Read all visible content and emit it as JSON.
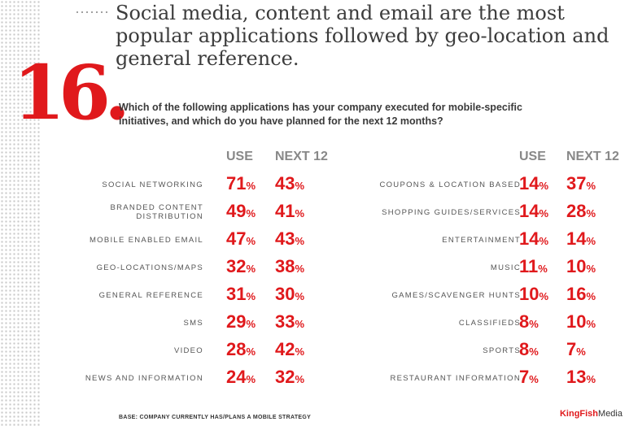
{
  "headline": "Social media, content and email are the most popular applications followed by geo-location and general reference.",
  "figure_number": "16",
  "question": "Which of the following applications has your company executed for mobile-specific initiatives, and which do you have planned for the next 12 months?",
  "columns": {
    "use": "USE",
    "next": "NEXT 12"
  },
  "percent_sign": "%",
  "left_rows": [
    {
      "label": "SOCIAL NETWORKING",
      "use": "71",
      "next": "43"
    },
    {
      "label": "BRANDED CONTENT DISTRIBUTION",
      "use": "49",
      "next": "41"
    },
    {
      "label": "MOBILE ENABLED EMAIL",
      "use": "47",
      "next": "43"
    },
    {
      "label": "GEO-LOCATIONS/MAPS",
      "use": "32",
      "next": "38"
    },
    {
      "label": "GENERAL REFERENCE",
      "use": "31",
      "next": "30"
    },
    {
      "label": "SMS",
      "use": "29",
      "next": "33"
    },
    {
      "label": "VIDEO",
      "use": "28",
      "next": "42"
    },
    {
      "label": "NEWS AND INFORMATION",
      "use": "24",
      "next": "32"
    }
  ],
  "right_rows": [
    {
      "label": "COUPONS & LOCATION BASED",
      "use": "14",
      "next": "37"
    },
    {
      "label": "SHOPPING GUIDES/SERVICES",
      "use": "14",
      "next": "28"
    },
    {
      "label": "ENTERTAINMENT",
      "use": "14",
      "next": "14"
    },
    {
      "label": "MUSIC",
      "use": "11",
      "next": "10"
    },
    {
      "label": "GAMES/SCAVENGER HUNTS",
      "use": "10",
      "next": "16"
    },
    {
      "label": "CLASSIFIEDS",
      "use": "8",
      "next": "10"
    },
    {
      "label": "SPORTS",
      "use": "8",
      "next": "7"
    },
    {
      "label": "RESTAURANT INFORMATION",
      "use": "7",
      "next": "13"
    }
  ],
  "base_note": "BASE: COMPANY CURRENTLY HAS/PLANS A MOBILE STRATEGY",
  "brand": {
    "part1": "KingFish",
    "part2": "Media"
  },
  "colors": {
    "accent": "#e0191c",
    "text": "#3c3c3c",
    "header": "#888888"
  }
}
